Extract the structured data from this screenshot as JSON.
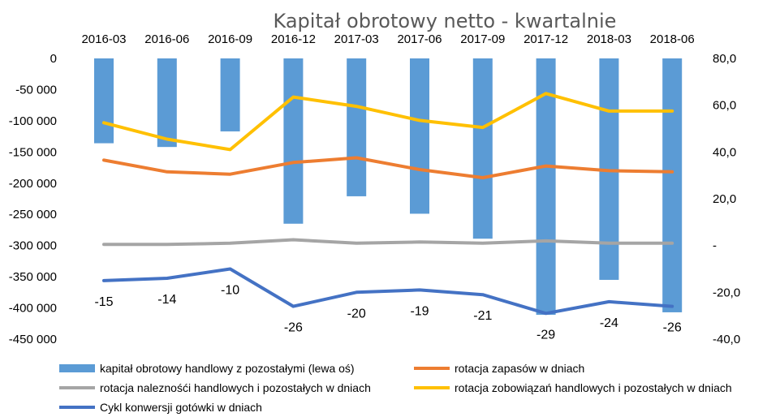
{
  "chart_data": {
    "type": "bar",
    "title": "Kapitał obrotowy netto - kwartalnie",
    "categories": [
      "2016-03",
      "2016-06",
      "2016-09",
      "2016-12",
      "2017-03",
      "2017-06",
      "2017-09",
      "2017-12",
      "2018-03",
      "2018-06"
    ],
    "left_axis": {
      "min": -450000,
      "max": 0,
      "step": 50000,
      "tick_labels": [
        "0",
        "-50 000",
        "-100 000",
        "-150 000",
        "-200 000",
        "-250 000",
        "-300 000",
        "-350 000",
        "-400 000",
        "-450 000"
      ]
    },
    "right_axis": {
      "min": -40,
      "max": 80,
      "step": 20,
      "tick_labels": [
        "80,0",
        "60,0",
        "40,0",
        "20,0",
        "-",
        "-20,0",
        "-40,0"
      ]
    },
    "series": [
      {
        "name": "kapitał obrotowy handlowy z pozostałymi (lewa oś)",
        "kind": "bar",
        "axis": "left",
        "color": "#5b9bd5",
        "values": [
          -136000,
          -142000,
          -117000,
          -265000,
          -221000,
          -249000,
          -289000,
          -411000,
          -355000,
          -407000
        ]
      },
      {
        "name": "rotacja zapasów w dniach",
        "kind": "line",
        "axis": "right",
        "color": "#ed7d31",
        "values": [
          36.5,
          31.5,
          30.5,
          35.5,
          37.5,
          32.5,
          29.0,
          34.0,
          32.0,
          31.5
        ]
      },
      {
        "name": "rotacja należności handlowych i pozostałych w dniach",
        "kind": "line",
        "axis": "right",
        "color": "#a5a5a5",
        "values": [
          0.5,
          0.5,
          1.0,
          2.5,
          1.0,
          1.5,
          1.0,
          2.0,
          1.0,
          1.0
        ]
      },
      {
        "name": "rotacja zobowiązań handlowych i pozostałych w dniach",
        "kind": "line",
        "axis": "right",
        "color": "#ffc000",
        "values": [
          52.5,
          45.5,
          41.0,
          63.5,
          59.5,
          53.5,
          50.5,
          65.0,
          57.5,
          57.5
        ]
      },
      {
        "name": "Cykl konwersji gotówki w dniach",
        "kind": "line",
        "axis": "right",
        "color": "#4472c4",
        "values": [
          -15,
          -14,
          -10,
          -26,
          -20,
          -19,
          -21,
          -29,
          -24,
          -26
        ],
        "data_labels": [
          "-15",
          "-14",
          "-10",
          "-26",
          "-20",
          "-19",
          "-21",
          "-29",
          "-24",
          "-26"
        ]
      }
    ],
    "legend": {
      "placement": "bottom",
      "items": [
        "kapitał obrotowy handlowy z pozostałymi (lewa oś)",
        "rotacja zapasów w dniach",
        "rotacja naleznośći handlowych i pozostałych w dniach",
        "rotacja zobowiązań handlowych i pozostałych w dniach",
        "Cykl konwersji gotówki w dniach"
      ]
    },
    "grid": false
  }
}
